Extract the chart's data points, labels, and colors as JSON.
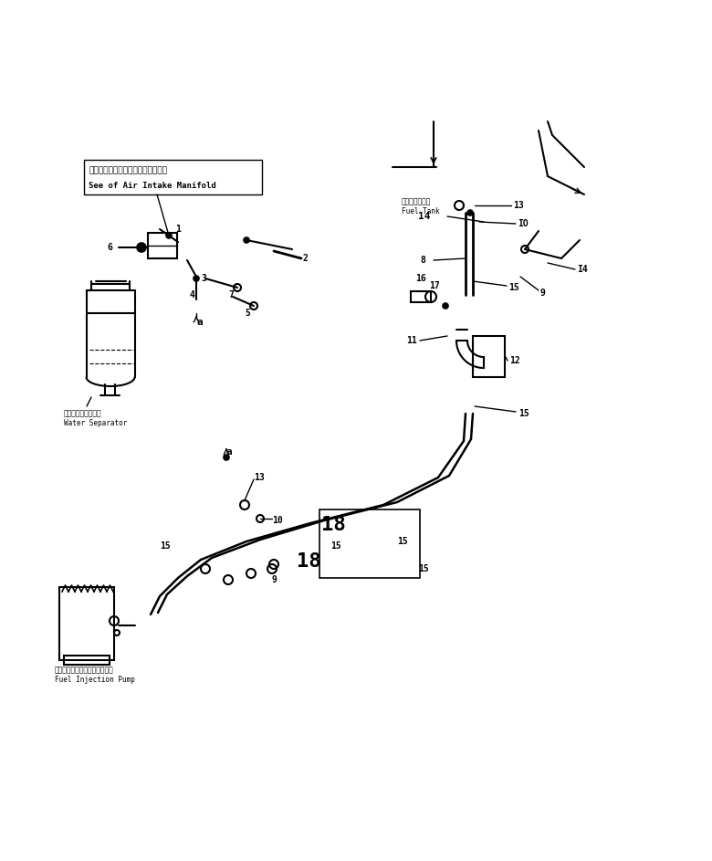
{
  "bg_color": "#ffffff",
  "line_color": "#000000",
  "fig_width": 7.8,
  "fig_height": 9.43,
  "dpi": 100,
  "label_box_text_jp": "エアーインアイクマニホールド参照",
  "label_box_text_en": "See of Air Intake Manifold",
  "water_sep_jp": "ウォータセパレータ",
  "water_sep_en": "Water Separator",
  "fuel_tank_jp": "フェエルタンク",
  "fuel_tank_en": "Fuel Tank",
  "fuel_pump_jp": "フェルインジェクションポンプ",
  "fuel_pump_en": "Fuel Injection Pump"
}
